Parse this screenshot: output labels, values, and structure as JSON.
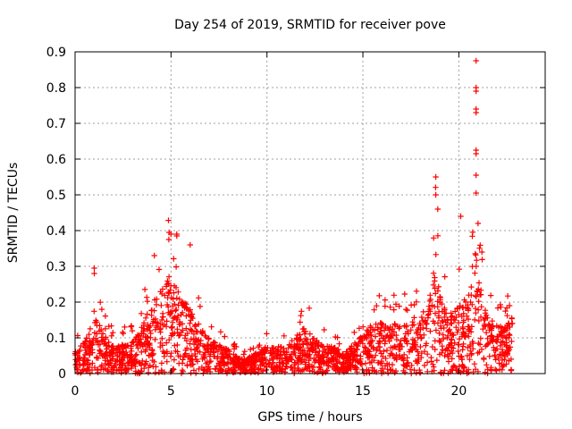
{
  "chart_data": {
    "type": "scatter",
    "title": "Day 254 of 2019, SRMTID for receiver pove",
    "xlabel": "GPS time / hours",
    "ylabel": "SRMTID / TECUs",
    "xlim": [
      0,
      24.5
    ],
    "ylim": [
      0,
      0.9
    ],
    "xticks": [
      0,
      5,
      10,
      15,
      20
    ],
    "xtick_labels": [
      "0",
      "5",
      "10",
      "15",
      "20"
    ],
    "yticks": [
      0,
      0.1,
      0.2,
      0.3,
      0.4,
      0.5,
      0.6,
      0.7,
      0.8,
      0.9
    ],
    "ytick_labels": [
      "0",
      "0.1",
      "0.2",
      "0.3",
      "0.4",
      "0.5",
      "0.6",
      "0.7",
      "0.8",
      "0.9"
    ],
    "grid": true,
    "marker": "plus",
    "color": "#ff0000",
    "envelope_hours": [
      0,
      0.5,
      1.0,
      1.5,
      2.0,
      3.0,
      3.5,
      4.0,
      4.5,
      5.0,
      5.5,
      6.0,
      6.5,
      7.0,
      8.0,
      8.5,
      9.0,
      10.0,
      11.0,
      12.0,
      12.5,
      13.0,
      13.5,
      14.0,
      15.0,
      15.5,
      16.0,
      17.0,
      18.0,
      18.5,
      18.8,
      19.0,
      19.5,
      20.0,
      20.5,
      20.8,
      21.0,
      21.3,
      22.0,
      22.5,
      22.8
    ],
    "envelope_levels": [
      0.06,
      0.08,
      0.16,
      0.1,
      0.07,
      0.08,
      0.12,
      0.18,
      0.22,
      0.26,
      0.19,
      0.17,
      0.12,
      0.09,
      0.06,
      0.04,
      0.04,
      0.07,
      0.07,
      0.12,
      0.09,
      0.07,
      0.07,
      0.05,
      0.1,
      0.13,
      0.13,
      0.13,
      0.15,
      0.2,
      0.32,
      0.2,
      0.15,
      0.17,
      0.2,
      0.32,
      0.28,
      0.17,
      0.12,
      0.12,
      0.15
    ],
    "peak_points": [
      {
        "x": 1.0,
        "y": 0.295
      },
      {
        "x": 1.0,
        "y": 0.28
      },
      {
        "x": 4.9,
        "y": 0.395
      },
      {
        "x": 5.0,
        "y": 0.39
      },
      {
        "x": 5.3,
        "y": 0.39
      },
      {
        "x": 5.3,
        "y": 0.385
      },
      {
        "x": 6.0,
        "y": 0.36
      },
      {
        "x": 18.8,
        "y": 0.55
      },
      {
        "x": 18.8,
        "y": 0.5
      },
      {
        "x": 18.9,
        "y": 0.46
      },
      {
        "x": 20.1,
        "y": 0.44
      },
      {
        "x": 20.9,
        "y": 0.875
      },
      {
        "x": 20.9,
        "y": 0.8
      },
      {
        "x": 20.9,
        "y": 0.79
      },
      {
        "x": 20.9,
        "y": 0.74
      },
      {
        "x": 20.9,
        "y": 0.73
      },
      {
        "x": 20.9,
        "y": 0.625
      },
      {
        "x": 20.9,
        "y": 0.615
      },
      {
        "x": 20.9,
        "y": 0.555
      },
      {
        "x": 20.9,
        "y": 0.505
      },
      {
        "x": 21.0,
        "y": 0.42
      },
      {
        "x": 21.2,
        "y": 0.34
      }
    ]
  }
}
